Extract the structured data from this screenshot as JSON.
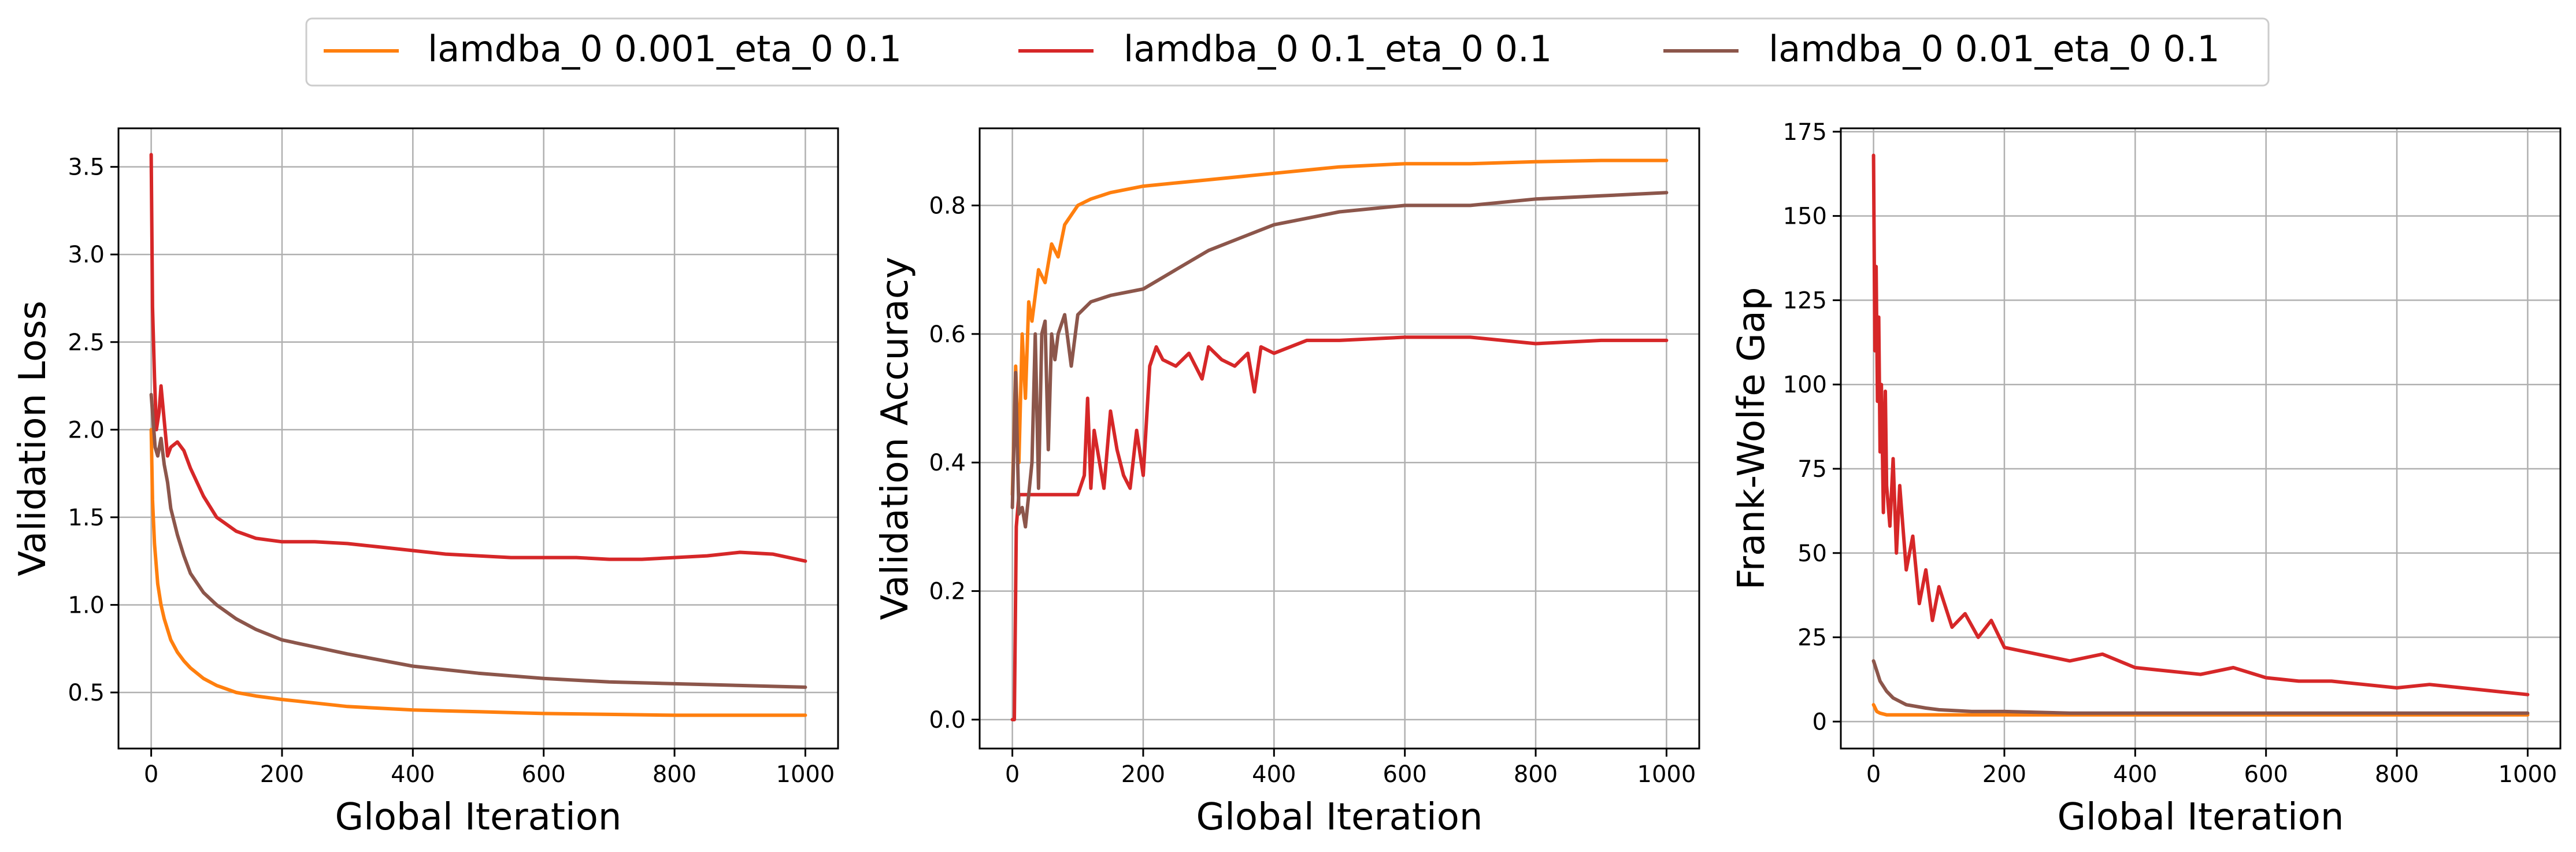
{
  "legend": {
    "placement": "top-center",
    "entries": [
      {
        "label": "lamdba_0 0.001_eta_0 0.1",
        "color": "#ff7f0e"
      },
      {
        "label": "lamdba_0 0.1_eta_0 0.1",
        "color": "#d62728"
      },
      {
        "label": "lamdba_0 0.01_eta_0 0.1",
        "color": "#8c564b"
      }
    ]
  },
  "chart_data": [
    {
      "type": "line",
      "xlabel": "Global Iteration",
      "ylabel": "Validation Loss",
      "xlim": [
        -50,
        1050
      ],
      "ylim": [
        0.18,
        3.72
      ],
      "xticks": [
        0,
        200,
        400,
        600,
        800,
        1000
      ],
      "yticks": [
        0.5,
        1.0,
        1.5,
        2.0,
        2.5,
        3.0,
        3.5
      ],
      "ytick_labels": [
        "0.5",
        "1.0",
        "1.5",
        "2.0",
        "2.5",
        "3.0",
        "3.5"
      ],
      "grid": true,
      "series": [
        {
          "name": "lamdba_0 0.001_eta_0 0.1",
          "color": "#ff7f0e",
          "x": [
            0,
            2,
            5,
            10,
            15,
            20,
            30,
            40,
            50,
            60,
            80,
            100,
            130,
            160,
            200,
            250,
            300,
            400,
            500,
            600,
            700,
            800,
            900,
            1000
          ],
          "y": [
            2.0,
            1.6,
            1.35,
            1.12,
            1.0,
            0.92,
            0.8,
            0.73,
            0.68,
            0.64,
            0.58,
            0.54,
            0.5,
            0.48,
            0.46,
            0.44,
            0.42,
            0.4,
            0.39,
            0.38,
            0.375,
            0.37,
            0.37,
            0.37
          ]
        },
        {
          "name": "lamdba_0 0.1_eta_0 0.1",
          "color": "#d62728",
          "x": [
            0,
            2,
            5,
            8,
            12,
            15,
            20,
            25,
            30,
            40,
            50,
            60,
            80,
            100,
            130,
            160,
            200,
            250,
            300,
            350,
            400,
            450,
            500,
            550,
            600,
            650,
            700,
            750,
            800,
            850,
            900,
            950,
            1000
          ],
          "y": [
            3.57,
            2.7,
            2.3,
            2.0,
            2.1,
            2.25,
            2.05,
            1.85,
            1.9,
            1.93,
            1.88,
            1.78,
            1.62,
            1.5,
            1.42,
            1.38,
            1.36,
            1.36,
            1.35,
            1.33,
            1.31,
            1.29,
            1.28,
            1.27,
            1.27,
            1.27,
            1.26,
            1.26,
            1.27,
            1.28,
            1.3,
            1.29,
            1.25
          ]
        },
        {
          "name": "lamdba_0 0.01_eta_0 0.1",
          "color": "#8c564b",
          "x": [
            0,
            3,
            6,
            10,
            15,
            20,
            25,
            30,
            40,
            50,
            60,
            80,
            100,
            130,
            160,
            200,
            250,
            300,
            400,
            500,
            600,
            700,
            800,
            900,
            1000
          ],
          "y": [
            2.2,
            2.05,
            1.9,
            1.85,
            1.95,
            1.8,
            1.7,
            1.55,
            1.4,
            1.28,
            1.18,
            1.07,
            1.0,
            0.92,
            0.86,
            0.8,
            0.76,
            0.72,
            0.65,
            0.61,
            0.58,
            0.56,
            0.55,
            0.54,
            0.53
          ]
        }
      ]
    },
    {
      "type": "line",
      "xlabel": "Global Iteration",
      "ylabel": "Validation Accuracy",
      "xlim": [
        -50,
        1050
      ],
      "ylim": [
        -0.045,
        0.92
      ],
      "xticks": [
        0,
        200,
        400,
        600,
        800,
        1000
      ],
      "yticks": [
        0.0,
        0.2,
        0.4,
        0.6,
        0.8
      ],
      "ytick_labels": [
        "0.0",
        "0.2",
        "0.4",
        "0.6",
        "0.8"
      ],
      "grid": true,
      "series": [
        {
          "name": "lamdba_0 0.001_eta_0 0.1",
          "color": "#ff7f0e",
          "x": [
            0,
            5,
            10,
            15,
            20,
            25,
            30,
            40,
            50,
            60,
            70,
            80,
            100,
            120,
            150,
            200,
            250,
            300,
            400,
            500,
            600,
            700,
            800,
            900,
            1000
          ],
          "y": [
            0.35,
            0.55,
            0.4,
            0.6,
            0.5,
            0.65,
            0.62,
            0.7,
            0.68,
            0.74,
            0.72,
            0.77,
            0.8,
            0.81,
            0.82,
            0.83,
            0.835,
            0.84,
            0.85,
            0.86,
            0.865,
            0.865,
            0.868,
            0.87,
            0.87
          ]
        },
        {
          "name": "lamdba_0 0.1_eta_0 0.1",
          "color": "#d62728",
          "x": [
            0,
            3,
            6,
            10,
            15,
            20,
            30,
            50,
            80,
            100,
            110,
            115,
            120,
            125,
            140,
            150,
            160,
            170,
            180,
            190,
            200,
            210,
            220,
            230,
            250,
            270,
            290,
            300,
            320,
            340,
            360,
            370,
            380,
            400,
            450,
            500,
            600,
            650,
            700,
            800,
            900,
            1000
          ],
          "y": [
            0.0,
            0.0,
            0.3,
            0.35,
            0.35,
            0.35,
            0.35,
            0.35,
            0.35,
            0.35,
            0.38,
            0.5,
            0.36,
            0.45,
            0.36,
            0.48,
            0.42,
            0.38,
            0.36,
            0.45,
            0.38,
            0.55,
            0.58,
            0.56,
            0.55,
            0.57,
            0.53,
            0.58,
            0.56,
            0.55,
            0.57,
            0.51,
            0.58,
            0.57,
            0.59,
            0.59,
            0.595,
            0.595,
            0.595,
            0.585,
            0.59,
            0.59
          ]
        },
        {
          "name": "lamdba_0 0.01_eta_0 0.1",
          "color": "#8c564b",
          "x": [
            0,
            5,
            10,
            15,
            20,
            25,
            30,
            35,
            40,
            45,
            50,
            55,
            60,
            65,
            70,
            80,
            90,
            100,
            120,
            150,
            200,
            250,
            300,
            350,
            400,
            450,
            500,
            600,
            700,
            800,
            900,
            1000
          ],
          "y": [
            0.33,
            0.54,
            0.32,
            0.33,
            0.3,
            0.35,
            0.4,
            0.6,
            0.36,
            0.6,
            0.62,
            0.42,
            0.6,
            0.56,
            0.6,
            0.63,
            0.55,
            0.63,
            0.65,
            0.66,
            0.67,
            0.7,
            0.73,
            0.75,
            0.77,
            0.78,
            0.79,
            0.8,
            0.8,
            0.81,
            0.815,
            0.82
          ]
        }
      ]
    },
    {
      "type": "line",
      "xlabel": "Global Iteration",
      "ylabel": "Frank-Wolfe Gap",
      "xlim": [
        -50,
        1050
      ],
      "ylim": [
        -8,
        176
      ],
      "xticks": [
        0,
        200,
        400,
        600,
        800,
        1000
      ],
      "yticks": [
        0,
        25,
        50,
        75,
        100,
        125,
        150,
        175
      ],
      "ytick_labels": [
        "0",
        "25",
        "50",
        "75",
        "100",
        "125",
        "150",
        "175"
      ],
      "grid": true,
      "series": [
        {
          "name": "lamdba_0 0.001_eta_0 0.1",
          "color": "#ff7f0e",
          "x": [
            0,
            5,
            10,
            20,
            30,
            50,
            100,
            200,
            300,
            400,
            500,
            600,
            700,
            800,
            900,
            1000
          ],
          "y": [
            5,
            3,
            2.5,
            2,
            2,
            2,
            2,
            2,
            2,
            2,
            2,
            2,
            2,
            2,
            2,
            2
          ]
        },
        {
          "name": "lamdba_0 0.1_eta_0 0.1",
          "color": "#d62728",
          "x": [
            0,
            2,
            4,
            6,
            8,
            10,
            12,
            15,
            18,
            20,
            25,
            30,
            35,
            40,
            50,
            60,
            70,
            80,
            90,
            100,
            120,
            140,
            160,
            180,
            200,
            250,
            300,
            350,
            400,
            450,
            500,
            550,
            600,
            650,
            700,
            750,
            800,
            850,
            900,
            950,
            1000
          ],
          "y": [
            168,
            110,
            135,
            95,
            120,
            80,
            100,
            62,
            98,
            70,
            58,
            78,
            50,
            70,
            45,
            55,
            35,
            45,
            30,
            40,
            28,
            32,
            25,
            30,
            22,
            20,
            18,
            20,
            16,
            15,
            14,
            16,
            13,
            12,
            12,
            11,
            10,
            11,
            10,
            9,
            8
          ]
        },
        {
          "name": "lamdba_0 0.01_eta_0 0.1",
          "color": "#8c564b",
          "x": [
            0,
            5,
            10,
            20,
            30,
            50,
            80,
            100,
            150,
            200,
            300,
            400,
            500,
            600,
            700,
            800,
            900,
            1000
          ],
          "y": [
            18,
            15,
            12,
            9,
            7,
            5,
            4,
            3.5,
            3,
            3,
            2.5,
            2.5,
            2.5,
            2.5,
            2.5,
            2.5,
            2.5,
            2.5
          ]
        }
      ]
    }
  ]
}
